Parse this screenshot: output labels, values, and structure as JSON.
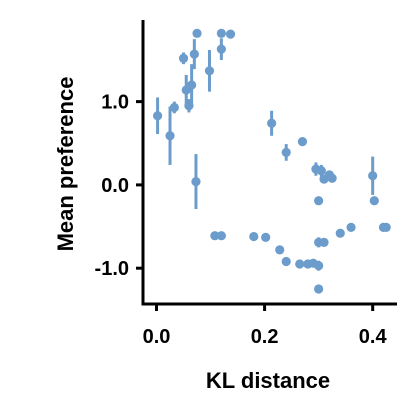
{
  "chart_data": {
    "type": "scatter",
    "title": "",
    "xlabel": "KL distance",
    "ylabel": "Mean preference",
    "xlim": [
      -0.025,
      0.445
    ],
    "ylim": [
      -1.43,
      1.98
    ],
    "x_ticks": [
      0.0,
      0.2,
      0.4
    ],
    "x_tick_labels": [
      "0.0",
      "0.2",
      "0.4"
    ],
    "y_ticks": [
      -1.0,
      0.0,
      1.0
    ],
    "y_tick_labels": [
      "-1.0",
      "0.0",
      "1.0"
    ],
    "grid": false,
    "legend": "none",
    "marker_color": "#6b9ccb",
    "points": [
      {
        "x": 0.002,
        "y": 0.83,
        "err": 0.22
      },
      {
        "x": 0.025,
        "y": 0.59,
        "err": 0.35
      },
      {
        "x": 0.033,
        "y": 0.93,
        "err": 0.07
      },
      {
        "x": 0.05,
        "y": 1.52,
        "err": 0.07
      },
      {
        "x": 0.055,
        "y": 1.14,
        "err": 0.18
      },
      {
        "x": 0.06,
        "y": 0.95,
        "err": 0.08
      },
      {
        "x": 0.065,
        "y": 1.2,
        "err": 0.25
      },
      {
        "x": 0.07,
        "y": 1.57,
        "err": 0.18
      },
      {
        "x": 0.073,
        "y": 0.04,
        "err": 0.33
      },
      {
        "x": 0.075,
        "y": 1.82,
        "err": 0.05
      },
      {
        "x": 0.098,
        "y": 1.37,
        "err": 0.25
      },
      {
        "x": 0.108,
        "y": -0.61,
        "err": 0.0
      },
      {
        "x": 0.12,
        "y": 1.82,
        "err": 0.05
      },
      {
        "x": 0.12,
        "y": 1.63,
        "err": 0.13
      },
      {
        "x": 0.12,
        "y": -0.61,
        "err": 0.0
      },
      {
        "x": 0.137,
        "y": 1.81,
        "err": 0.04
      },
      {
        "x": 0.18,
        "y": -0.62,
        "err": 0.0
      },
      {
        "x": 0.202,
        "y": -0.63,
        "err": 0.0
      },
      {
        "x": 0.213,
        "y": 0.74,
        "err": 0.15
      },
      {
        "x": 0.228,
        "y": -0.78,
        "err": 0.03
      },
      {
        "x": 0.24,
        "y": 0.39,
        "err": 0.1
      },
      {
        "x": 0.24,
        "y": -0.92,
        "err": 0.03
      },
      {
        "x": 0.265,
        "y": -0.95,
        "err": 0.0
      },
      {
        "x": 0.27,
        "y": 0.52,
        "err": 0.04
      },
      {
        "x": 0.28,
        "y": -0.95,
        "err": 0.0
      },
      {
        "x": 0.29,
        "y": -0.94,
        "err": 0.05
      },
      {
        "x": 0.295,
        "y": 0.19,
        "err": 0.08
      },
      {
        "x": 0.3,
        "y": -0.97,
        "err": 0.06
      },
      {
        "x": 0.3,
        "y": -1.25,
        "err": 0.0
      },
      {
        "x": 0.3,
        "y": -0.69,
        "err": 0.06
      },
      {
        "x": 0.3,
        "y": -0.19,
        "err": 0.0
      },
      {
        "x": 0.305,
        "y": 0.17,
        "err": 0.07
      },
      {
        "x": 0.31,
        "y": 0.07,
        "err": 0.0
      },
      {
        "x": 0.31,
        "y": -0.69,
        "err": 0.03
      },
      {
        "x": 0.32,
        "y": 0.12,
        "err": 0.0
      },
      {
        "x": 0.325,
        "y": 0.08,
        "err": 0.05
      },
      {
        "x": 0.34,
        "y": -0.58,
        "err": 0.0
      },
      {
        "x": 0.36,
        "y": -0.51,
        "err": 0.0
      },
      {
        "x": 0.4,
        "y": 0.11,
        "err": 0.23
      },
      {
        "x": 0.403,
        "y": -0.19,
        "err": 0.0
      },
      {
        "x": 0.42,
        "y": -0.51,
        "err": 0.0
      },
      {
        "x": 0.425,
        "y": -0.51,
        "err": 0.0
      }
    ]
  }
}
